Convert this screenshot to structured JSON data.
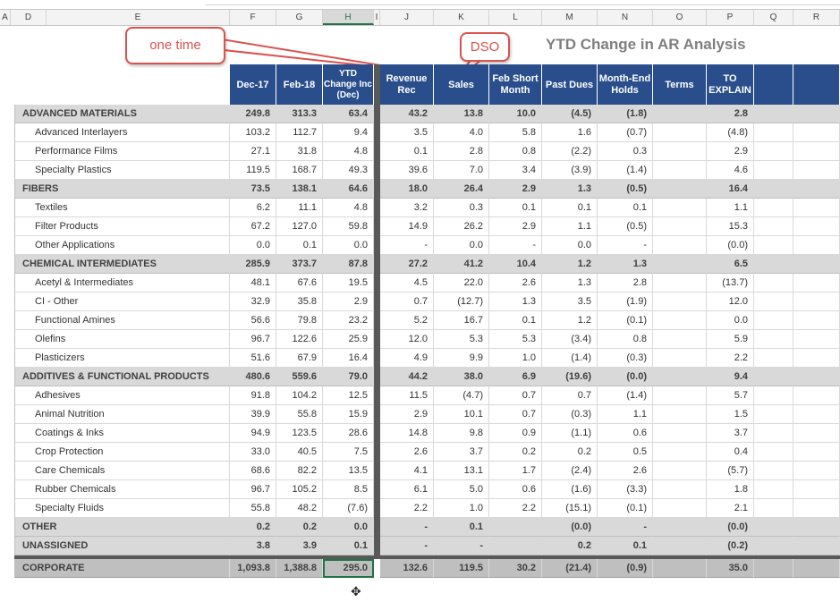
{
  "column_letters": [
    "A",
    "D",
    "E",
    "F",
    "G",
    "H",
    "I",
    "J",
    "K",
    "L",
    "M",
    "N",
    "O",
    "P",
    "Q",
    "R"
  ],
  "selected_column": "H",
  "callouts": {
    "one_time": "one time",
    "dso": "DSO"
  },
  "report_title": "YTD Change in AR Analysis",
  "headers": {
    "dec17": "Dec-17",
    "feb18": "Feb-18",
    "ytd_change": "YTD Change Inc (Dec)",
    "revenue_rec": "Revenue Rec",
    "sales": "Sales",
    "feb_short_month": "Feb Short Month",
    "past_dues": "Past Dues",
    "month_end_holds": "Month-End Holds",
    "terms": "Terms",
    "to_explain": "TO EXPLAIN"
  },
  "rows": [
    {
      "type": "group",
      "label": "ADVANCED MATERIALS",
      "dec17": "249.8",
      "feb18": "313.3",
      "ytd": "63.4",
      "rev": "43.2",
      "sales": "13.8",
      "feb": "10.0",
      "past": "(4.5)",
      "hold": "(1.8)",
      "terms": "",
      "toexp": "2.8"
    },
    {
      "type": "item",
      "label": "Advanced Interlayers",
      "dec17": "103.2",
      "feb18": "112.7",
      "ytd": "9.4",
      "rev": "3.5",
      "sales": "4.0",
      "feb": "5.8",
      "past": "1.6",
      "hold": "(0.7)",
      "terms": "",
      "toexp": "(4.8)"
    },
    {
      "type": "item",
      "label": "Performance Films",
      "dec17": "27.1",
      "feb18": "31.8",
      "ytd": "4.8",
      "rev": "0.1",
      "sales": "2.8",
      "feb": "0.8",
      "past": "(2.2)",
      "hold": "0.3",
      "terms": "",
      "toexp": "2.9"
    },
    {
      "type": "item",
      "label": "Specialty Plastics",
      "dec17": "119.5",
      "feb18": "168.7",
      "ytd": "49.3",
      "rev": "39.6",
      "sales": "7.0",
      "feb": "3.4",
      "past": "(3.9)",
      "hold": "(1.4)",
      "terms": "",
      "toexp": "4.6"
    },
    {
      "type": "group",
      "label": "FIBERS",
      "dec17": "73.5",
      "feb18": "138.1",
      "ytd": "64.6",
      "rev": "18.0",
      "sales": "26.4",
      "feb": "2.9",
      "past": "1.3",
      "hold": "(0.5)",
      "terms": "",
      "toexp": "16.4"
    },
    {
      "type": "item",
      "label": "Textiles",
      "dec17": "6.2",
      "feb18": "11.1",
      "ytd": "4.8",
      "rev": "3.2",
      "sales": "0.3",
      "feb": "0.1",
      "past": "0.1",
      "hold": "0.1",
      "terms": "",
      "toexp": "1.1"
    },
    {
      "type": "item",
      "label": "Filter Products",
      "dec17": "67.2",
      "feb18": "127.0",
      "ytd": "59.8",
      "rev": "14.9",
      "sales": "26.2",
      "feb": "2.9",
      "past": "1.1",
      "hold": "(0.5)",
      "terms": "",
      "toexp": "15.3"
    },
    {
      "type": "item",
      "label": "Other Applications",
      "dec17": "0.0",
      "feb18": "0.1",
      "ytd": "0.0",
      "rev": "-",
      "sales": "0.0",
      "feb": "-",
      "past": "0.0",
      "hold": "-",
      "terms": "",
      "toexp": "(0.0)"
    },
    {
      "type": "group",
      "label": "CHEMICAL INTERMEDIATES",
      "dec17": "285.9",
      "feb18": "373.7",
      "ytd": "87.8",
      "rev": "27.2",
      "sales": "41.2",
      "feb": "10.4",
      "past": "1.2",
      "hold": "1.3",
      "terms": "",
      "toexp": "6.5"
    },
    {
      "type": "item",
      "label": "Acetyl & Intermediates",
      "dec17": "48.1",
      "feb18": "67.6",
      "ytd": "19.5",
      "rev": "4.5",
      "sales": "22.0",
      "feb": "2.6",
      "past": "1.3",
      "hold": "2.8",
      "terms": "",
      "toexp": "(13.7)"
    },
    {
      "type": "item",
      "label": "CI - Other",
      "dec17": "32.9",
      "feb18": "35.8",
      "ytd": "2.9",
      "rev": "0.7",
      "sales": "(12.7)",
      "feb": "1.3",
      "past": "3.5",
      "hold": "(1.9)",
      "terms": "",
      "toexp": "12.0"
    },
    {
      "type": "item",
      "label": "Functional Amines",
      "dec17": "56.6",
      "feb18": "79.8",
      "ytd": "23.2",
      "rev": "5.2",
      "sales": "16.7",
      "feb": "0.1",
      "past": "1.2",
      "hold": "(0.1)",
      "terms": "",
      "toexp": "0.0"
    },
    {
      "type": "item",
      "label": "Olefins",
      "dec17": "96.7",
      "feb18": "122.6",
      "ytd": "25.9",
      "rev": "12.0",
      "sales": "5.3",
      "feb": "5.3",
      "past": "(3.4)",
      "hold": "0.8",
      "terms": "",
      "toexp": "5.9"
    },
    {
      "type": "item",
      "label": "Plasticizers",
      "dec17": "51.6",
      "feb18": "67.9",
      "ytd": "16.4",
      "rev": "4.9",
      "sales": "9.9",
      "feb": "1.0",
      "past": "(1.4)",
      "hold": "(0.3)",
      "terms": "",
      "toexp": "2.2"
    },
    {
      "type": "group",
      "label": "ADDITIVES & FUNCTIONAL PRODUCTS",
      "dec17": "480.6",
      "feb18": "559.6",
      "ytd": "79.0",
      "rev": "44.2",
      "sales": "38.0",
      "feb": "6.9",
      "past": "(19.6)",
      "hold": "(0.0)",
      "terms": "",
      "toexp": "9.4"
    },
    {
      "type": "item",
      "label": "Adhesives",
      "dec17": "91.8",
      "feb18": "104.2",
      "ytd": "12.5",
      "rev": "11.5",
      "sales": "(4.7)",
      "feb": "0.7",
      "past": "0.7",
      "hold": "(1.4)",
      "terms": "",
      "toexp": "5.7"
    },
    {
      "type": "item",
      "label": "Animal Nutrition",
      "dec17": "39.9",
      "feb18": "55.8",
      "ytd": "15.9",
      "rev": "2.9",
      "sales": "10.1",
      "feb": "0.7",
      "past": "(0.3)",
      "hold": "1.1",
      "terms": "",
      "toexp": "1.5"
    },
    {
      "type": "item",
      "label": "Coatings & Inks",
      "dec17": "94.9",
      "feb18": "123.5",
      "ytd": "28.6",
      "rev": "14.8",
      "sales": "9.8",
      "feb": "0.9",
      "past": "(1.1)",
      "hold": "0.6",
      "terms": "",
      "toexp": "3.7"
    },
    {
      "type": "item",
      "label": "Crop Protection",
      "dec17": "33.0",
      "feb18": "40.5",
      "ytd": "7.5",
      "rev": "2.6",
      "sales": "3.7",
      "feb": "0.2",
      "past": "0.2",
      "hold": "0.5",
      "terms": "",
      "toexp": "0.4"
    },
    {
      "type": "item",
      "label": "Care Chemicals",
      "dec17": "68.6",
      "feb18": "82.2",
      "ytd": "13.5",
      "rev": "4.1",
      "sales": "13.1",
      "feb": "1.7",
      "past": "(2.4)",
      "hold": "2.6",
      "terms": "",
      "toexp": "(5.7)"
    },
    {
      "type": "item",
      "label": "Rubber Chemicals",
      "dec17": "96.7",
      "feb18": "105.2",
      "ytd": "8.5",
      "rev": "6.1",
      "sales": "5.0",
      "feb": "0.6",
      "past": "(1.6)",
      "hold": "(3.3)",
      "terms": "",
      "toexp": "1.8"
    },
    {
      "type": "item",
      "label": "Specialty Fluids",
      "dec17": "55.8",
      "feb18": "48.2",
      "ytd": "(7.6)",
      "rev": "2.2",
      "sales": "1.0",
      "feb": "2.2",
      "past": "(15.1)",
      "hold": "(0.1)",
      "terms": "",
      "toexp": "2.1"
    },
    {
      "type": "group",
      "label": "OTHER",
      "dec17": "0.2",
      "feb18": "0.2",
      "ytd": "0.0",
      "rev": "-",
      "sales": "0.1",
      "feb": "",
      "past": "(0.0)",
      "hold": "-",
      "terms": "",
      "toexp": "(0.0)"
    },
    {
      "type": "group",
      "label": "UNASSIGNED",
      "dec17": "3.8",
      "feb18": "3.9",
      "ytd": "0.1",
      "rev": "-",
      "sales": "-",
      "feb": "",
      "past": "0.2",
      "hold": "0.1",
      "terms": "",
      "toexp": "(0.2)"
    },
    {
      "type": "corp",
      "label": "CORPORATE",
      "dec17": "1,093.8",
      "feb18": "1,388.8",
      "ytd": "295.0",
      "rev": "132.6",
      "sales": "119.5",
      "feb": "30.2",
      "past": "(21.4)",
      "hold": "(0.9)",
      "terms": "",
      "toexp": "35.0"
    }
  ],
  "colors": {
    "header_blue": "#2a4e8c",
    "group_gray": "#d9d9d9",
    "corporate_gray": "#bfbfbf",
    "callout_red": "#d9534f",
    "selection_green": "#217346"
  },
  "icons": {
    "cursor": "plus-cross-cursor-icon"
  }
}
